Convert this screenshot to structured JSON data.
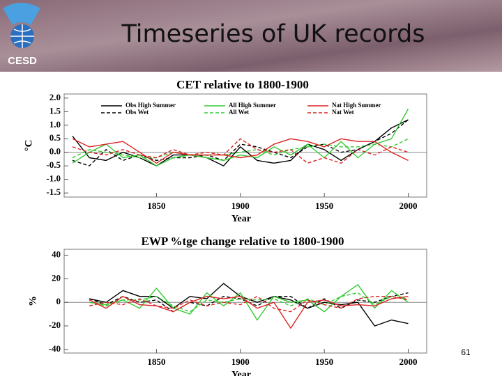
{
  "slide": {
    "title": "Timeseries of UK records",
    "logo": "CESD",
    "page_number": "61"
  },
  "chart_data": [
    {
      "type": "line",
      "title": "CET relative to 1800-1900",
      "y_label": "°C",
      "x_label": "Year",
      "legend": "top",
      "x": [
        1800,
        1810,
        1820,
        1830,
        1840,
        1850,
        1860,
        1870,
        1880,
        1890,
        1900,
        1910,
        1920,
        1930,
        1940,
        1950,
        1960,
        1970,
        1980,
        1990,
        2000
      ],
      "xlim": [
        1795,
        2011
      ],
      "xticks": [
        1850,
        1900,
        1950,
        2000
      ],
      "ylim": [
        -1.65,
        2.15
      ],
      "yticks": [
        {
          "value": 2,
          "label": "2.0"
        },
        1.5,
        {
          "value": 1,
          "label": "1.0"
        },
        0.5,
        {
          "value": 0,
          "label": "0.0"
        },
        -0.5,
        {
          "value": -1,
          "label": "-1.0"
        },
        -1.5
      ],
      "series": [
        {
          "name": "Obs High Summer",
          "color": "#000000",
          "dashed": false,
          "values": [
            0.6,
            -0.2,
            -0.3,
            0.0,
            -0.2,
            -0.5,
            -0.1,
            -0.1,
            -0.2,
            -0.5,
            0.2,
            -0.3,
            -0.4,
            -0.3,
            0.3,
            0.1,
            -0.3,
            0.1,
            0.4,
            0.9,
            1.2
          ]
        },
        {
          "name": "Obs Wet",
          "color": "#000000",
          "dashed": true,
          "values": [
            -0.3,
            -0.5,
            0.1,
            -0.3,
            -0.1,
            -0.3,
            -0.2,
            -0.2,
            -0.1,
            -0.3,
            0.3,
            0.2,
            0.0,
            -0.2,
            0.2,
            0.3,
            0.0,
            0.1,
            0.4,
            0.7,
            1.2
          ]
        },
        {
          "name": "All High Summer",
          "color": "#33cc33",
          "dashed": false,
          "values": [
            -0.4,
            0.0,
            0.3,
            -0.2,
            -0.1,
            -0.5,
            -0.2,
            -0.1,
            -0.2,
            -0.3,
            -0.1,
            -0.2,
            0.2,
            -0.1,
            0.3,
            -0.2,
            0.4,
            -0.2,
            0.3,
            0.5,
            1.6
          ]
        },
        {
          "name": "All Wet",
          "color": "#33cc33",
          "dashed": true,
          "values": [
            -0.2,
            0.1,
            0.0,
            -0.1,
            -0.2,
            -0.2,
            0.0,
            -0.1,
            -0.1,
            -0.1,
            0.0,
            0.1,
            -0.1,
            0.1,
            0.2,
            0.3,
            0.2,
            0.2,
            0.3,
            0.2,
            0.5
          ]
        },
        {
          "name": "Nat High Summer",
          "color": "#dd2222",
          "dashed": false,
          "values": [
            0.5,
            0.2,
            0.3,
            0.4,
            0.0,
            -0.4,
            0.0,
            -0.1,
            -0.1,
            -0.1,
            -0.2,
            -0.1,
            0.3,
            0.5,
            0.4,
            0.2,
            0.5,
            0.4,
            0.4,
            0.0,
            -0.3
          ]
        },
        {
          "name": "Nat Wet",
          "color": "#dd2222",
          "dashed": true,
          "values": [
            0.2,
            0.0,
            -0.1,
            0.1,
            -0.1,
            -0.2,
            0.1,
            -0.1,
            0.0,
            -0.1,
            0.5,
            0.1,
            0.0,
            0.1,
            -0.4,
            -0.2,
            -0.4,
            0.1,
            -0.1,
            0.2,
            0.0
          ]
        }
      ]
    },
    {
      "type": "line",
      "title": "EWP %tge change relative to 1800-1900",
      "y_label": "%",
      "x_label": "Year",
      "x": [
        1810,
        1820,
        1830,
        1840,
        1850,
        1860,
        1870,
        1880,
        1890,
        1900,
        1910,
        1920,
        1930,
        1940,
        1950,
        1960,
        1970,
        1980,
        1990,
        2000
      ],
      "xlim": [
        1795,
        2011
      ],
      "xticks": [
        1850,
        1900,
        1950,
        2000
      ],
      "ylim": [
        -43,
        45
      ],
      "yticks": [
        40,
        20,
        0,
        -20,
        -40
      ],
      "series": [
        {
          "name": "Obs High Summer",
          "color": "#000000",
          "dashed": false,
          "values": [
            3,
            0,
            10,
            5,
            5,
            -5,
            5,
            3,
            16,
            5,
            0,
            5,
            2,
            -5,
            0,
            -2,
            0,
            -20,
            -15,
            -18
          ]
        },
        {
          "name": "Obs Wet",
          "color": "#000000",
          "dashed": true,
          "values": [
            3,
            -2,
            5,
            0,
            2,
            -8,
            0,
            -3,
            5,
            3,
            -3,
            5,
            5,
            -5,
            3,
            -5,
            2,
            0,
            5,
            8
          ]
        },
        {
          "name": "All High Summer",
          "color": "#33cc33",
          "dashed": false,
          "values": [
            0,
            -2,
            2,
            -5,
            12,
            -5,
            -10,
            8,
            -3,
            8,
            -15,
            5,
            0,
            2,
            -8,
            5,
            15,
            -5,
            10,
            0
          ]
        },
        {
          "name": "All Wet",
          "color": "#33cc33",
          "dashed": true,
          "values": [
            0,
            -3,
            2,
            2,
            5,
            -3,
            -8,
            2,
            0,
            3,
            2,
            3,
            -3,
            3,
            -2,
            5,
            8,
            -2,
            5,
            3
          ]
        },
        {
          "name": "Nat High Summer",
          "color": "#dd2222",
          "dashed": false,
          "values": [
            2,
            -5,
            5,
            -2,
            -3,
            -8,
            0,
            5,
            3,
            5,
            -5,
            0,
            -22,
            0,
            2,
            -3,
            -2,
            -3,
            3,
            5
          ]
        },
        {
          "name": "Nat Wet",
          "color": "#dd2222",
          "dashed": true,
          "values": [
            -3,
            0,
            -2,
            3,
            -3,
            -5,
            2,
            -3,
            0,
            -2,
            5,
            -5,
            -8,
            2,
            -2,
            -5,
            3,
            5,
            5,
            2
          ]
        }
      ]
    }
  ]
}
